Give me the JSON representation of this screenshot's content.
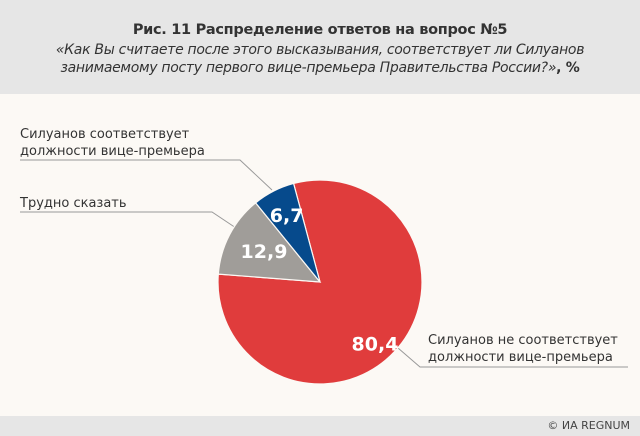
{
  "header": {
    "title": "Рис. 11 Распределение ответов на вопрос №5",
    "subtitle": "«Как Вы считаете после этого высказывания, соответствует ли Силуанов занимаемому посту первого вице-премьера Правительства России?»",
    "unit": ", %"
  },
  "chart_data": {
    "type": "pie",
    "title": "Рис. 11 Распределение ответов на вопрос №5",
    "unit": "%",
    "slices": [
      {
        "label": "Силуанов не соответствует должности вице-премьера",
        "label_lines": [
          "Силуанов не соответствует",
          "должности вице-премьера"
        ],
        "value": 80.4,
        "value_text": "80,4",
        "color": "#e03c3c"
      },
      {
        "label": "Трудно сказать",
        "label_lines": [
          "Трудно сказать"
        ],
        "value": 12.9,
        "value_text": "12,9",
        "color": "#a09d99"
      },
      {
        "label": "Силуанов соответствует должности вице-премьера",
        "label_lines": [
          "Силуанов соответствует",
          "должности вице-премьера"
        ],
        "value": 6.7,
        "value_text": "6,7",
        "color": "#064a8c"
      }
    ]
  },
  "footer": {
    "credit": "© ИА REGNUM"
  }
}
